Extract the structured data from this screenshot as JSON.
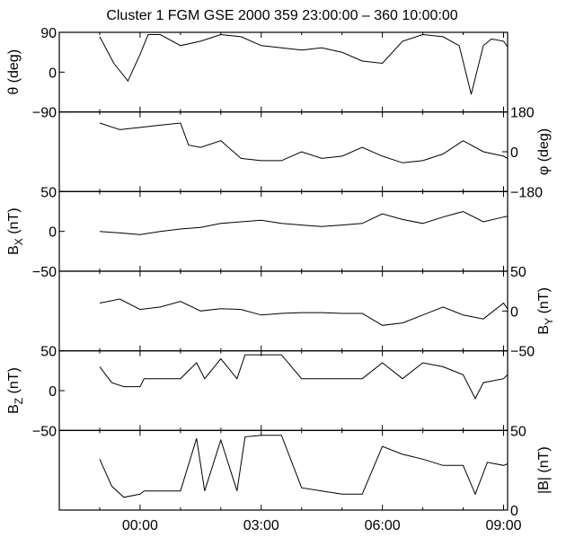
{
  "chart_data": {
    "type": "line",
    "title": "Cluster 1 FGM GSE 2000 359 23:00:00 – 360 10:00:00",
    "x_axis": {
      "unit": "hours from 23:00",
      "range": [
        -1.0,
        10.1
      ],
      "ticks": [
        {
          "x": 1.0,
          "label": "00:00"
        },
        {
          "x": 4.0,
          "label": "03:00"
        },
        {
          "x": 7.0,
          "label": "06:00"
        },
        {
          "x": 10.0,
          "label": "09:00"
        }
      ]
    },
    "panels": [
      {
        "name": "theta",
        "ylabel_base": "θ (deg)",
        "ylabel_sub": "",
        "ylabel_tail": "",
        "ylabel_side": "left",
        "ylim": [
          -90,
          90
        ],
        "ticks_left": [
          {
            "v": 90,
            "label": "90"
          },
          {
            "v": 0,
            "label": "0"
          },
          {
            "v": -90,
            "label": "−90"
          }
        ],
        "ticks_right": [],
        "series": [
          {
            "x": [
              0.0,
              0.35,
              0.7,
              1.0,
              1.2,
              1.5,
              2.0,
              2.5,
              3.0,
              3.5,
              4.0,
              4.5,
              5.0,
              5.5,
              6.0,
              6.5,
              7.0,
              7.5,
              8.0,
              8.5,
              8.9,
              9.2,
              9.5,
              9.7,
              10.0,
              10.2
            ],
            "y": [
              80,
              20,
              -20,
              40,
              85,
              85,
              60,
              70,
              85,
              80,
              60,
              55,
              50,
              55,
              45,
              25,
              20,
              70,
              85,
              80,
              60,
              -50,
              60,
              75,
              70,
              45
            ]
          }
        ]
      },
      {
        "name": "phi",
        "ylabel_base": "φ (deg)",
        "ylabel_sub": "",
        "ylabel_tail": "",
        "ylabel_side": "right",
        "ylim": [
          -180,
          180
        ],
        "ticks_left": [],
        "ticks_right": [
          {
            "v": 180,
            "label": "180"
          },
          {
            "v": 0,
            "label": "0"
          },
          {
            "v": -180,
            "label": "−180"
          }
        ],
        "series": [
          {
            "x": [
              0.0,
              0.5,
              1.0,
              1.5,
              2.0,
              2.2,
              2.5,
              3.0,
              3.5,
              4.0,
              4.5,
              5.0,
              5.5,
              6.0,
              6.5,
              7.0,
              7.5,
              8.0,
              8.5,
              9.0,
              9.5,
              10.0,
              10.2
            ],
            "y": [
              130,
              100,
              110,
              120,
              130,
              30,
              20,
              50,
              -30,
              -40,
              -40,
              0,
              -30,
              -20,
              20,
              -20,
              -50,
              -40,
              -10,
              50,
              0,
              -20,
              -40
            ]
          }
        ]
      },
      {
        "name": "Bx",
        "ylabel_base": "B",
        "ylabel_sub": "X",
        "ylabel_tail": " (nT)",
        "ylabel_side": "left",
        "ylim": [
          -50,
          50
        ],
        "ticks_left": [
          {
            "v": 50,
            "label": "50"
          },
          {
            "v": 0,
            "label": "0"
          },
          {
            "v": -50,
            "label": "−50"
          }
        ],
        "ticks_right": [],
        "series": [
          {
            "x": [
              0.0,
              0.5,
              1.0,
              1.5,
              2.0,
              2.5,
              3.0,
              3.5,
              4.0,
              4.5,
              5.0,
              5.5,
              6.0,
              6.5,
              7.0,
              7.5,
              8.0,
              8.5,
              9.0,
              9.5,
              10.0,
              10.2
            ],
            "y": [
              0,
              -2,
              -4,
              0,
              3,
              5,
              10,
              12,
              14,
              10,
              8,
              6,
              8,
              10,
              22,
              15,
              10,
              18,
              25,
              12,
              18,
              20
            ]
          }
        ]
      },
      {
        "name": "By",
        "ylabel_base": "B",
        "ylabel_sub": "Y",
        "ylabel_tail": " (nT)",
        "ylabel_side": "right",
        "ylim": [
          -50,
          50
        ],
        "ticks_left": [],
        "ticks_right": [
          {
            "v": 50,
            "label": "50"
          },
          {
            "v": 0,
            "label": "0"
          },
          {
            "v": -50,
            "label": "−50"
          }
        ],
        "series": [
          {
            "x": [
              0.0,
              0.5,
              1.0,
              1.5,
              2.0,
              2.5,
              3.0,
              3.5,
              4.0,
              4.5,
              5.0,
              5.5,
              6.0,
              6.5,
              7.0,
              7.5,
              8.0,
              8.5,
              9.0,
              9.5,
              10.0,
              10.2
            ],
            "y": [
              10,
              15,
              2,
              5,
              12,
              0,
              3,
              2,
              -5,
              -3,
              -2,
              -2,
              -3,
              -3,
              -18,
              -15,
              -5,
              5,
              -5,
              -10,
              10,
              -5
            ]
          }
        ]
      },
      {
        "name": "Bz",
        "ylabel_base": "B",
        "ylabel_sub": "Z",
        "ylabel_tail": " (nT)",
        "ylabel_side": "left",
        "ylim": [
          -50,
          50
        ],
        "ticks_left": [
          {
            "v": 50,
            "label": "50"
          },
          {
            "v": 0,
            "label": "0"
          },
          {
            "v": -50,
            "label": "−50"
          }
        ],
        "ticks_right": [],
        "series": [
          {
            "x": [
              0.0,
              0.3,
              0.6,
              1.0,
              1.1,
              1.5,
              2.0,
              2.4,
              2.6,
              3.0,
              3.4,
              3.6,
              4.0,
              4.5,
              5.0,
              5.5,
              6.0,
              6.5,
              7.0,
              7.5,
              8.0,
              8.5,
              9.0,
              9.3,
              9.5,
              10.0,
              10.2
            ],
            "y": [
              30,
              10,
              5,
              5,
              15,
              15,
              15,
              35,
              15,
              40,
              15,
              45,
              45,
              45,
              15,
              15,
              15,
              15,
              35,
              15,
              35,
              30,
              20,
              -10,
              10,
              15,
              25
            ]
          }
        ]
      },
      {
        "name": "B_total",
        "ylabel_base": "|B| (nT)",
        "ylabel_sub": "",
        "ylabel_tail": "",
        "ylabel_side": "right",
        "ylim": [
          0,
          50
        ],
        "ticks_left": [],
        "ticks_right": [
          {
            "v": 50,
            "label": "50"
          },
          {
            "v": 0,
            "label": "0"
          }
        ],
        "series": [
          {
            "x": [
              0.0,
              0.3,
              0.6,
              1.0,
              1.1,
              1.5,
              2.0,
              2.4,
              2.6,
              3.0,
              3.4,
              3.6,
              4.0,
              4.5,
              5.0,
              5.5,
              6.0,
              6.5,
              7.0,
              7.5,
              8.0,
              8.5,
              9.0,
              9.3,
              9.6,
              10.0,
              10.2
            ],
            "y": [
              32,
              15,
              8,
              10,
              12,
              12,
              12,
              45,
              12,
              44,
              12,
              46,
              47,
              47,
              14,
              12,
              10,
              10,
              40,
              35,
              32,
              28,
              28,
              10,
              30,
              28,
              30
            ]
          }
        ]
      }
    ]
  }
}
